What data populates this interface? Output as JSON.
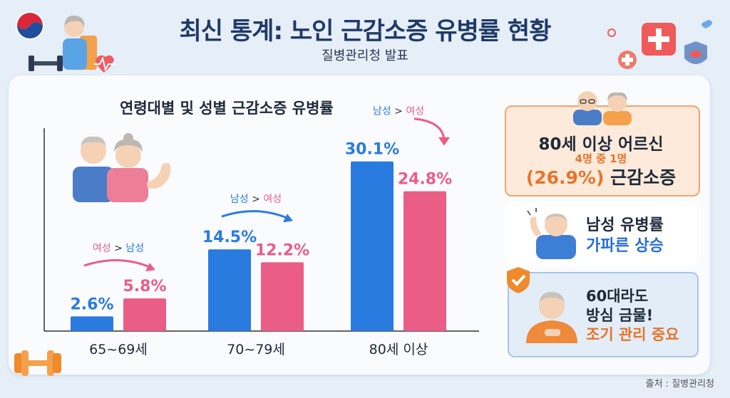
{
  "header": {
    "title": "최신 통계: 노인 근감소증 유병률 현황",
    "subtitle": "질병관리청 발표"
  },
  "chart_data": {
    "type": "bar",
    "title": "연령대별 및 성별 근감소증 유병률",
    "categories": [
      "65~69세",
      "70~79세",
      "80세 이상"
    ],
    "series": [
      {
        "name": "남성",
        "values": [
          2.6,
          14.5,
          30.1
        ]
      },
      {
        "name": "여성",
        "values": [
          5.8,
          12.2,
          24.8
        ]
      }
    ],
    "value_labels": [
      [
        "2.6%",
        "14.5%",
        "30.1%"
      ],
      [
        "5.8%",
        "12.2%",
        "24.8%"
      ]
    ],
    "annotations": [
      "여성 > 남성",
      "남성 > 여성",
      "남성 > 여성"
    ],
    "ylim": [
      0,
      36
    ],
    "colors": {
      "남성": "#2a7be0",
      "여성": "#ea5d87"
    }
  },
  "sidebar": {
    "box1_line1": "80세 이상 어르신",
    "box1_line2": "4명 중 1명",
    "box1_line3_pct": "(26.9%)",
    "box1_line3_text": "근감소증",
    "box2_line1": "남성 유병률",
    "box2_line2": "가파른 상승",
    "box3_line1": "60대라도",
    "box3_line2": "방심 금물!",
    "box3_line3": "조기 관리 중요"
  },
  "source": "출처 : 질병관리청",
  "colors": {
    "male": "#2a7be0",
    "female": "#ea5d87",
    "title": "#1f3a68",
    "accent_orange": "#e8742a"
  }
}
